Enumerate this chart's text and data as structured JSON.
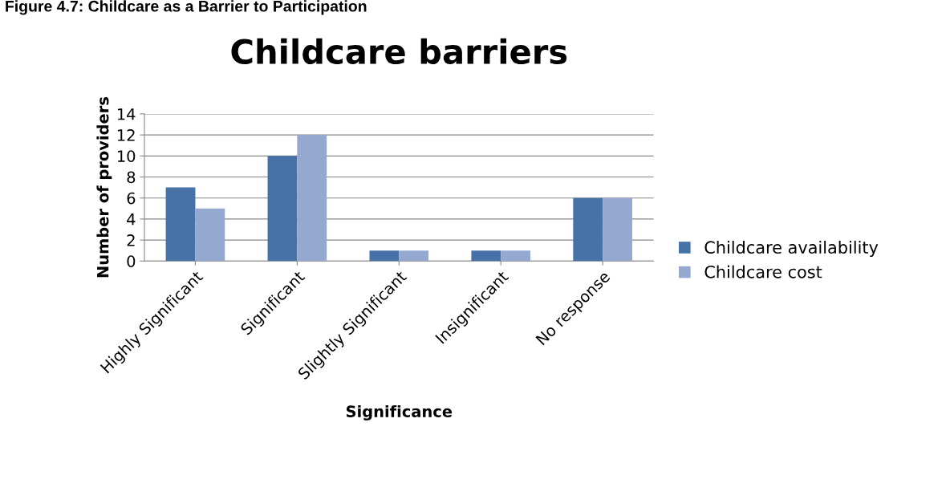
{
  "chart_data": {
    "type": "bar",
    "title": "Childcare barriers",
    "annotations": [
      "Figure 4.7: Childcare as a Barrier to Participation"
    ],
    "xlabel": "Significance",
    "ylabel": "Number of providers",
    "categories": [
      "Highly Significant",
      "Significant",
      "Slightly Significant",
      "Insignificant",
      "No response"
    ],
    "series": [
      {
        "name": "Childcare availability",
        "color": "#4672a8",
        "values": [
          7,
          10,
          1,
          1,
          6
        ]
      },
      {
        "name": "Childcare cost",
        "color": "#95a9d0",
        "values": [
          5,
          12,
          1,
          1,
          6
        ]
      }
    ],
    "ylim": [
      0,
      14
    ],
    "yticks": [
      0,
      2,
      4,
      6,
      8,
      10,
      12,
      14
    ],
    "grid": "y",
    "legend": "right"
  }
}
